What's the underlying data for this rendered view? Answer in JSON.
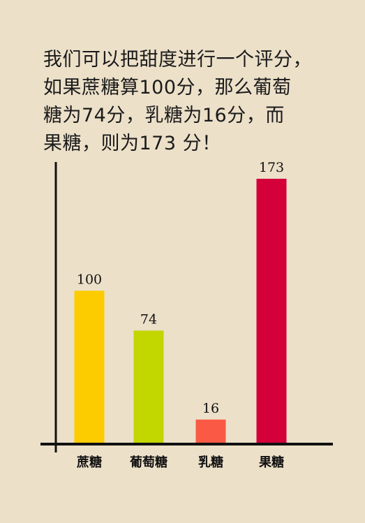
{
  "intro_lines": [
    "我们可以把甜度进行一个评分，",
    "如果蔗糖算100分，那么葡萄",
    "糖为74分，乳糖为16分，而",
    "果糖，则为173 分！"
  ],
  "chart_data": {
    "type": "bar",
    "categories": [
      "蔗糖",
      "葡萄糖",
      "乳糖",
      "果糖"
    ],
    "values": [
      100,
      74,
      16,
      173
    ],
    "data_labels": [
      "100",
      "74",
      "16",
      "173"
    ],
    "colors": [
      "#fccc00",
      "#c2d600",
      "#fa5a45",
      "#d4003a"
    ],
    "axis_color": "#111111",
    "title": "",
    "xlabel": "",
    "ylabel": "",
    "ylim": [
      0,
      190
    ],
    "grid": false,
    "legend": "none"
  }
}
